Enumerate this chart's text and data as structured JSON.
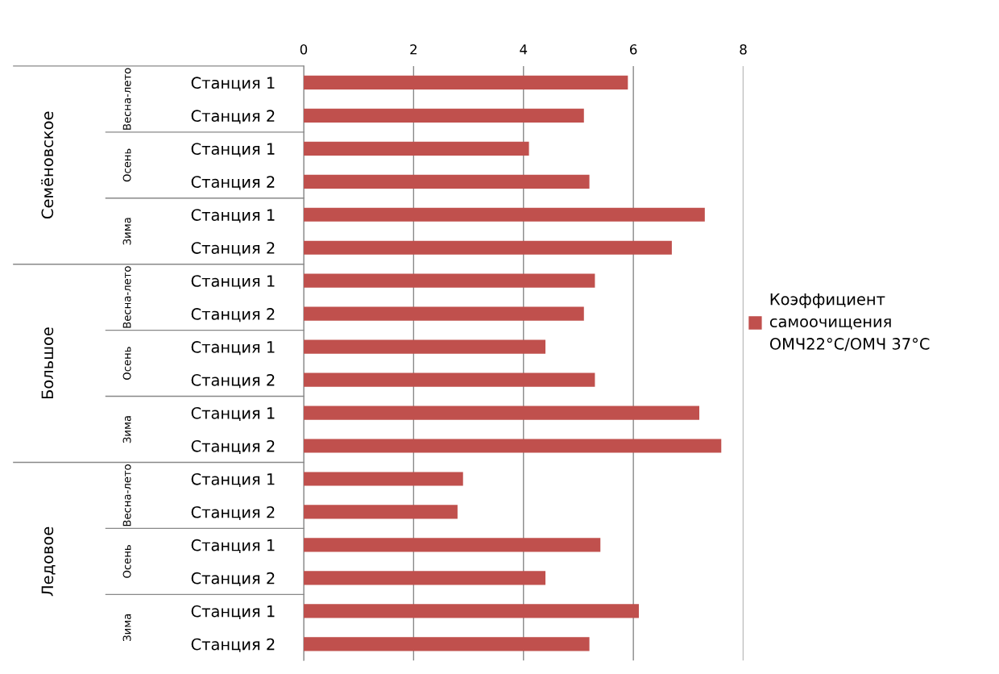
{
  "chart_data": {
    "type": "bar",
    "orientation": "horizontal",
    "categories": [
      "Станция 1",
      "Станция 2",
      "Станция 1",
      "Станция 2",
      "Станция 1",
      "Станция 2",
      "Станция 1",
      "Станция 2",
      "Станция 1",
      "Станция 2",
      "Станция 1",
      "Станция 2",
      "Станция 1",
      "Станция 2",
      "Станция 1",
      "Станция 2",
      "Станция 1",
      "Станция 2"
    ],
    "series": [
      {
        "name": "Коэффициент самоочищения ОМЧ22°C/ОМЧ 37°C",
        "color": "#c0504d",
        "values": [
          5.9,
          5.1,
          4.1,
          5.2,
          7.3,
          6.7,
          5.3,
          5.1,
          4.4,
          5.3,
          7.2,
          7.6,
          2.9,
          2.8,
          5.4,
          4.4,
          6.1,
          5.2
        ]
      }
    ],
    "xlim": [
      0,
      8
    ],
    "xticks": [
      0,
      2,
      4,
      6,
      8
    ],
    "grid": "x",
    "legend": "right",
    "annotations": [
      "Семёновское",
      "Весна-лето",
      "Осень",
      "Зима",
      "Большое",
      "Весна-лето",
      "Осень",
      "Зима",
      "Ледовое",
      "Весна-лето",
      "Осень",
      "Зима"
    ]
  }
}
